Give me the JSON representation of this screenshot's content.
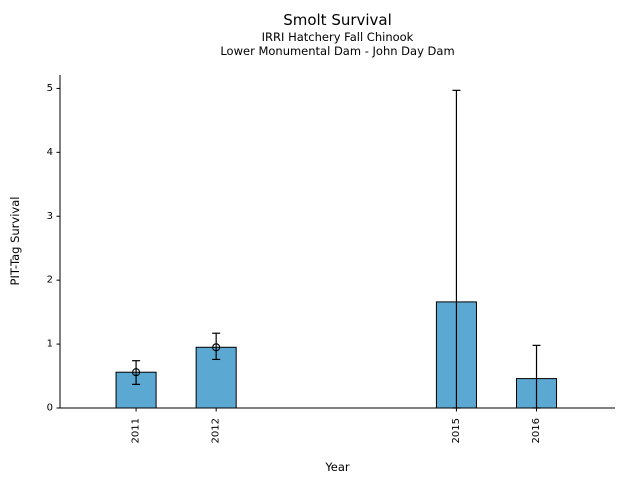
{
  "figure": {
    "background": "#ffffff"
  },
  "chart_data": {
    "type": "bar",
    "title": "Smolt Survival",
    "subtitle1": "IRRI Hatchery Fall Chinook",
    "subtitle2": "Lower Monumental Dam - John Day Dam",
    "xlabel": "Year",
    "ylabel": "PIT-Tag Survival",
    "categories": [
      2011,
      2012,
      2015,
      2016
    ],
    "values": [
      0.56,
      0.95,
      1.66,
      0.46
    ],
    "error_low": [
      0.37,
      0.76,
      0.0,
      0.0
    ],
    "error_high": [
      0.74,
      1.17,
      4.97,
      0.98
    ],
    "point_markers": [
      true,
      true,
      false,
      false
    ],
    "xticks": [
      2011,
      2012,
      2015,
      2016
    ],
    "yticks": [
      0,
      1,
      2,
      3,
      4,
      5
    ],
    "xlim": [
      2010.05,
      2016.98
    ],
    "ylim": [
      0,
      5.21
    ],
    "bar_width_years": 0.5,
    "bar_color": "#5BA9D3",
    "bar_edge_color": "#000000",
    "error_color": "#000000",
    "axis_color": "#000000",
    "grid": false,
    "legend": "none"
  }
}
